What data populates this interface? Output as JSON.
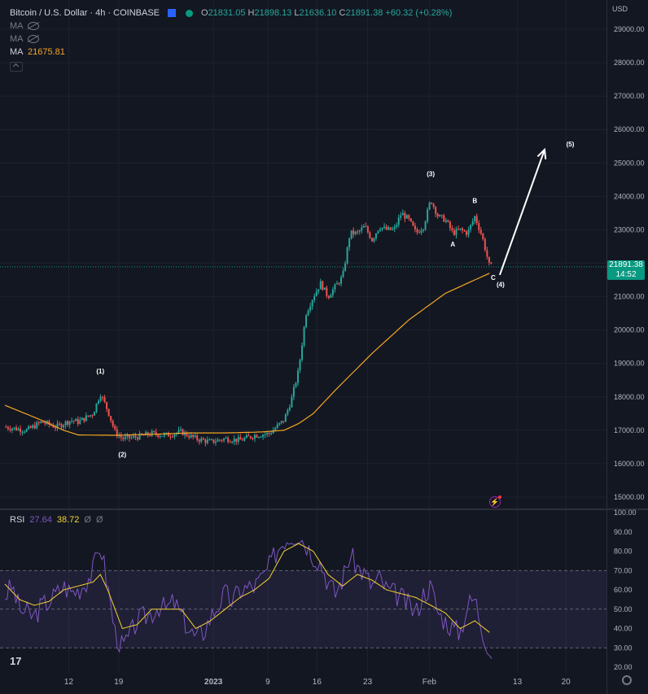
{
  "legend": {
    "title": "Bitcoin / U.S. Dollar · 4h · COINBASE",
    "open_label": "O",
    "open": "21831.05",
    "high_label": "H",
    "high": "21898.13",
    "low_label": "L",
    "low": "21636.10",
    "close_label": "C",
    "close": "21891.38",
    "change": "+60.32 (+0.28%)",
    "ma_rows": [
      {
        "label": "MA",
        "value": ""
      },
      {
        "label": "MA",
        "value": ""
      },
      {
        "label": "MA",
        "value": "21675.81"
      }
    ]
  },
  "currency": "USD",
  "price_tag": {
    "price": "21891.38",
    "timer": "14:52"
  },
  "rsi_legend": {
    "label": "RSI",
    "value1": "27.64",
    "value2": "38.72",
    "n1": "Ø",
    "n2": "Ø"
  },
  "colors": {
    "up": "#26a69a",
    "down": "#ef5350",
    "ma": "#f5a623",
    "rsi": "#7e57c2",
    "rsi_ma": "#f5d22e",
    "background": "#131722"
  },
  "chart_data": [
    {
      "type": "candlestick",
      "ylim": [
        14600,
        29600
      ],
      "yticks": [
        15000,
        16000,
        17000,
        18000,
        19000,
        20000,
        21000,
        22000,
        23000,
        24000,
        25000,
        26000,
        27000,
        28000,
        29000
      ],
      "ytick_labels": [
        "15000.00",
        "16000.00",
        "17000.00",
        "18000.00",
        "19000.00",
        "20000.00",
        "21000.00",
        "22000.00",
        "23000.00",
        "24000.00",
        "25000.00",
        "26000.00",
        "27000.00",
        "28000.00",
        "29000.00"
      ],
      "xtick_labels": [
        "12",
        "19",
        "2023",
        "9",
        "16",
        "23",
        "Feb",
        "13",
        "20"
      ],
      "price_anchors": [
        [
          0,
          17100
        ],
        [
          3,
          17000
        ],
        [
          5,
          17250
        ],
        [
          7,
          17100
        ],
        [
          9,
          17300
        ],
        [
          10,
          17250
        ],
        [
          12,
          17500
        ],
        [
          13,
          18100
        ],
        [
          14,
          17600
        ],
        [
          15,
          16950
        ],
        [
          16,
          16750
        ],
        [
          18,
          16800
        ],
        [
          20,
          16900
        ],
        [
          22,
          16850
        ],
        [
          24,
          16950
        ],
        [
          26,
          16750
        ],
        [
          28,
          16650
        ],
        [
          30,
          16750
        ],
        [
          32,
          16700
        ],
        [
          34,
          16850
        ],
        [
          36,
          16900
        ],
        [
          37,
          17100
        ],
        [
          38,
          17300
        ],
        [
          39,
          17900
        ],
        [
          40,
          18800
        ],
        [
          41,
          20500
        ],
        [
          42,
          21000
        ],
        [
          43,
          21400
        ],
        [
          44,
          21000
        ],
        [
          45,
          21300
        ],
        [
          46,
          21600
        ],
        [
          47,
          22900
        ],
        [
          48,
          22900
        ],
        [
          49,
          23100
        ],
        [
          50,
          22700
        ],
        [
          51,
          23100
        ],
        [
          52,
          23000
        ],
        [
          53,
          23000
        ],
        [
          54,
          23500
        ],
        [
          55,
          23300
        ],
        [
          56,
          22900
        ],
        [
          57,
          23100
        ],
        [
          58,
          23900
        ],
        [
          59,
          23400
        ],
        [
          60,
          23300
        ],
        [
          61,
          22900
        ],
        [
          62,
          23000
        ],
        [
          63,
          22900
        ],
        [
          64,
          23400
        ],
        [
          65,
          22800
        ],
        [
          66,
          21900
        ]
      ],
      "ma_values": [
        [
          0,
          17750
        ],
        [
          5,
          17300
        ],
        [
          8,
          17000
        ],
        [
          10,
          16860
        ],
        [
          15,
          16850
        ],
        [
          20,
          16880
        ],
        [
          25,
          16920
        ],
        [
          30,
          16920
        ],
        [
          35,
          16950
        ],
        [
          38,
          17000
        ],
        [
          40,
          17200
        ],
        [
          42,
          17500
        ],
        [
          45,
          18200
        ],
        [
          50,
          19300
        ],
        [
          55,
          20300
        ],
        [
          60,
          21100
        ],
        [
          64,
          21500
        ],
        [
          66,
          21700
        ]
      ],
      "annotations": [
        {
          "text": "(1)",
          "x": 13,
          "y": 18700
        },
        {
          "text": "(2)",
          "x": 16,
          "y": 16200
        },
        {
          "text": "(3)",
          "x": 58,
          "y": 24600
        },
        {
          "text": "B",
          "x": 64,
          "y": 23800
        },
        {
          "text": "A",
          "x": 61,
          "y": 22500
        },
        {
          "text": "C",
          "x": 66.5,
          "y": 21500
        },
        {
          "text": "(4)",
          "x": 67.5,
          "y": 21300
        },
        {
          "text": "(5)",
          "x": 77,
          "y": 25500
        }
      ],
      "arrow": {
        "from": [
          67.4,
          21650
        ],
        "to": [
          73.5,
          25400
        ]
      }
    },
    {
      "type": "line",
      "title": "RSI",
      "ylim": [
        16,
        102
      ],
      "yticks": [
        20,
        30,
        40,
        50,
        60,
        70,
        80,
        90,
        100
      ],
      "ytick_labels": [
        "20.00",
        "30.00",
        "40.00",
        "50.00",
        "60.00",
        "70.00",
        "80.00",
        "90.00",
        "100.00"
      ],
      "band": [
        30,
        70
      ],
      "rsi_anchors": [
        [
          0,
          57
        ],
        [
          1,
          62
        ],
        [
          2,
          50
        ],
        [
          3,
          48
        ],
        [
          4,
          46
        ],
        [
          5,
          52
        ],
        [
          6,
          54
        ],
        [
          7,
          58
        ],
        [
          8,
          62
        ],
        [
          9,
          59
        ],
        [
          10,
          60
        ],
        [
          11,
          64
        ],
        [
          12,
          70
        ],
        [
          13,
          84
        ],
        [
          14,
          62
        ],
        [
          15,
          38
        ],
        [
          16,
          30
        ],
        [
          17,
          36
        ],
        [
          18,
          44
        ],
        [
          19,
          46
        ],
        [
          20,
          48
        ],
        [
          21,
          52
        ],
        [
          22,
          50
        ],
        [
          23,
          54
        ],
        [
          24,
          47
        ],
        [
          25,
          40
        ],
        [
          26,
          35
        ],
        [
          27,
          38
        ],
        [
          28,
          46
        ],
        [
          29,
          52
        ],
        [
          30,
          58
        ],
        [
          31,
          54
        ],
        [
          32,
          60
        ],
        [
          33,
          61
        ],
        [
          34,
          62
        ],
        [
          35,
          66
        ],
        [
          36,
          72
        ],
        [
          37,
          80
        ],
        [
          38,
          86
        ],
        [
          39,
          88
        ],
        [
          40,
          89
        ],
        [
          41,
          84
        ],
        [
          42,
          78
        ],
        [
          43,
          74
        ],
        [
          44,
          64
        ],
        [
          45,
          58
        ],
        [
          46,
          66
        ],
        [
          47,
          78
        ],
        [
          48,
          72
        ],
        [
          49,
          68
        ],
        [
          50,
          62
        ],
        [
          51,
          66
        ],
        [
          52,
          60
        ],
        [
          53,
          58
        ],
        [
          54,
          56
        ],
        [
          55,
          52
        ],
        [
          56,
          48
        ],
        [
          57,
          58
        ],
        [
          58,
          62
        ],
        [
          59,
          48
        ],
        [
          60,
          44
        ],
        [
          61,
          40
        ],
        [
          62,
          38
        ],
        [
          63,
          52
        ],
        [
          64,
          56
        ],
        [
          65,
          40
        ],
        [
          66,
          28
        ]
      ],
      "rsi_ma_anchors": [
        [
          0,
          63
        ],
        [
          2,
          55
        ],
        [
          4,
          52
        ],
        [
          6,
          54
        ],
        [
          8,
          60
        ],
        [
          10,
          62
        ],
        [
          12,
          64
        ],
        [
          13,
          68
        ],
        [
          14,
          60
        ],
        [
          16,
          40
        ],
        [
          18,
          42
        ],
        [
          20,
          50
        ],
        [
          22,
          50
        ],
        [
          24,
          50
        ],
        [
          26,
          40
        ],
        [
          28,
          44
        ],
        [
          30,
          50
        ],
        [
          32,
          56
        ],
        [
          34,
          60
        ],
        [
          36,
          66
        ],
        [
          38,
          80
        ],
        [
          40,
          84
        ],
        [
          42,
          80
        ],
        [
          44,
          68
        ],
        [
          46,
          62
        ],
        [
          48,
          68
        ],
        [
          50,
          65
        ],
        [
          52,
          60
        ],
        [
          54,
          58
        ],
        [
          56,
          56
        ],
        [
          58,
          52
        ],
        [
          60,
          48
        ],
        [
          62,
          40
        ],
        [
          64,
          44
        ],
        [
          66,
          38
        ]
      ]
    }
  ]
}
